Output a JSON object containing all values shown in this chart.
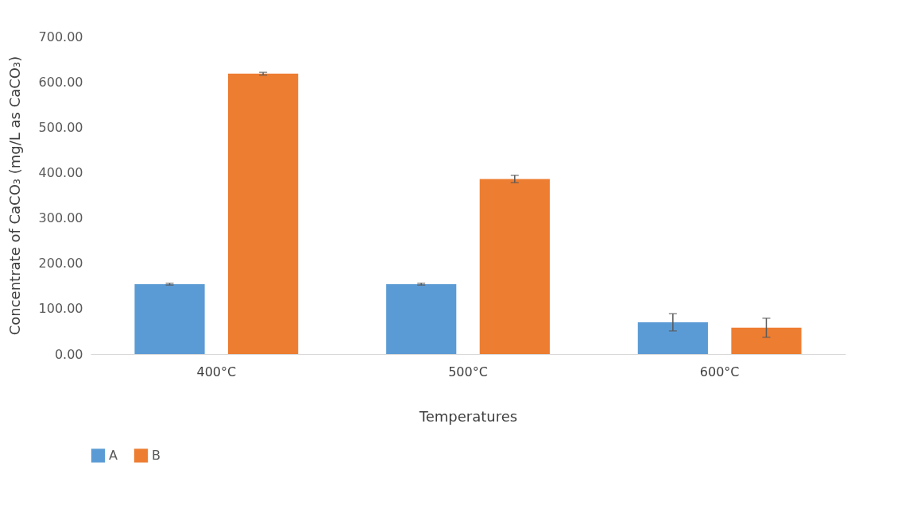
{
  "chart_data": {
    "type": "bar",
    "xlabel": "Temperatures",
    "ylabel": "Concentrate of CaCO₃ (mg/L as CaCO₃)",
    "categories": [
      "400°C",
      "500°C",
      "600°C"
    ],
    "series": [
      {
        "name": "A",
        "color": "#5b9bd5",
        "values": [
          154,
          154,
          70
        ],
        "errors": [
          2,
          2,
          19
        ]
      },
      {
        "name": "B",
        "color": "#ed7d31",
        "values": [
          618,
          386,
          58
        ],
        "errors": [
          3,
          8,
          21
        ]
      }
    ],
    "ylim": [
      0,
      700
    ],
    "yticks": [
      {
        "value": 0,
        "label": "0.00"
      },
      {
        "value": 100,
        "label": "100.00"
      },
      {
        "value": 200,
        "label": "200.00"
      },
      {
        "value": 300,
        "label": "300.00"
      },
      {
        "value": 400,
        "label": "400.00"
      },
      {
        "value": 500,
        "label": "500.00"
      },
      {
        "value": 600,
        "label": "600.00"
      },
      {
        "value": 700,
        "label": "700.00"
      }
    ],
    "grid": false,
    "legend": "bottom"
  }
}
